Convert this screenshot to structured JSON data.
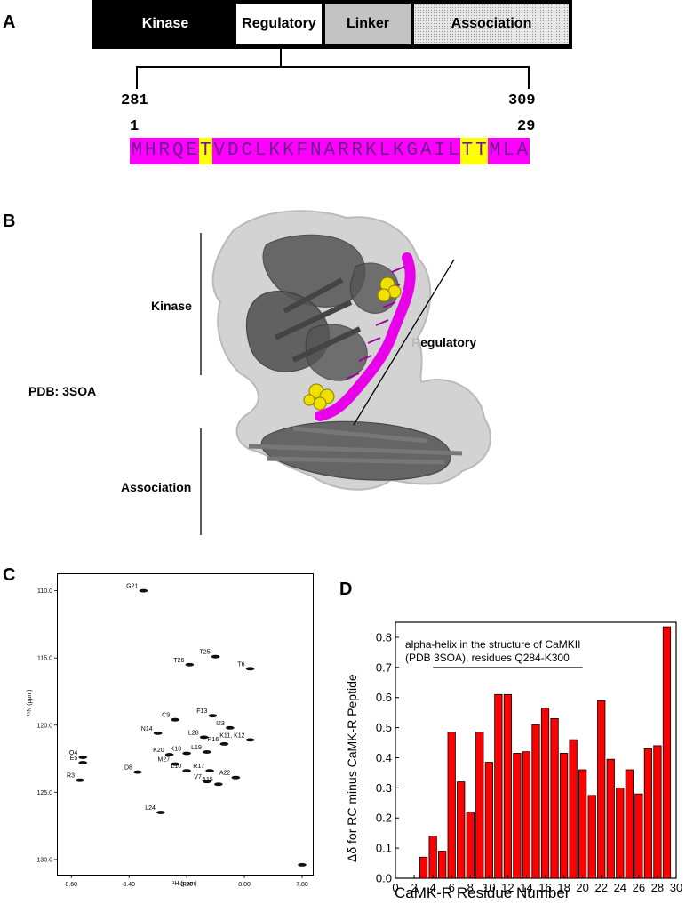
{
  "panels": {
    "a": {
      "letter": "A",
      "domains": [
        "Kinase",
        "Regulatory",
        "Linker",
        "Association"
      ],
      "residue_start": "281",
      "residue_end": "309",
      "peptide_start": "1",
      "peptide_end": "29",
      "sequence": "MHRQETVDCLKKFNARRKLKGAILTTMLA",
      "highlight_positions": [
        6,
        25,
        26
      ],
      "colors": {
        "sequence_bg": "#ff00ff",
        "highlight_bg": "#ffff00",
        "sequence_text": "#6a1a8a"
      }
    },
    "b": {
      "letter": "B",
      "pdb_label": "PDB: 3SOA",
      "kinase_label": "Kinase",
      "regulatory_label": "Regulatory",
      "association_label": "Association",
      "colors": {
        "surface": "#c9c9c9",
        "cartoon": "#555555",
        "helix": "#e800e8",
        "spheres": "#f0e000"
      }
    },
    "c": {
      "letter": "C",
      "x_label": "¹H (ppm)",
      "y_label": "¹⁵N (ppm)",
      "x_ticks": [
        "8.60",
        "8.40",
        "8.20",
        "8.00",
        "7.80"
      ],
      "y_ticks": [
        "110.0",
        "115.0",
        "120.0",
        "125.0",
        "130.0"
      ],
      "peaks": [
        {
          "label": "G21",
          "h": 8.35,
          "n": 110.0
        },
        {
          "label": "T25",
          "h": 8.1,
          "n": 114.9
        },
        {
          "label": "T26",
          "h": 8.19,
          "n": 115.5
        },
        {
          "label": "T6",
          "h": 7.98,
          "n": 115.8
        },
        {
          "label": "F13",
          "h": 8.11,
          "n": 119.3
        },
        {
          "label": "C9",
          "h": 8.24,
          "n": 119.6
        },
        {
          "label": "I23",
          "h": 8.05,
          "n": 120.2
        },
        {
          "label": "N14",
          "h": 8.3,
          "n": 120.6
        },
        {
          "label": "K11, K12",
          "h": 7.98,
          "n": 121.1
        },
        {
          "label": "L28",
          "h": 8.14,
          "n": 120.9
        },
        {
          "label": "R16",
          "h": 8.07,
          "n": 121.4
        },
        {
          "label": "K20",
          "h": 8.26,
          "n": 122.2
        },
        {
          "label": "K18",
          "h": 8.2,
          "n": 122.1
        },
        {
          "label": "L19",
          "h": 8.13,
          "n": 122.0
        },
        {
          "label": "M27",
          "h": 8.24,
          "n": 122.9
        },
        {
          "label": "R17",
          "h": 8.12,
          "n": 123.4
        },
        {
          "label": "L10",
          "h": 8.2,
          "n": 123.4
        },
        {
          "label": "D8",
          "h": 8.37,
          "n": 123.5
        },
        {
          "label": "A22",
          "h": 8.03,
          "n": 123.9
        },
        {
          "label": "V7",
          "h": 8.13,
          "n": 124.2
        },
        {
          "label": "A15",
          "h": 8.09,
          "n": 124.4
        },
        {
          "label": "Q4",
          "h": 8.56,
          "n": 122.4
        },
        {
          "label": "E5",
          "h": 8.56,
          "n": 122.8
        },
        {
          "label": "R3",
          "h": 8.57,
          "n": 124.1
        },
        {
          "label": "L24",
          "h": 8.29,
          "n": 126.5
        },
        {
          "label": "",
          "h": 7.8,
          "n": 130.4
        }
      ]
    },
    "d": {
      "letter": "D"
    }
  },
  "chart_data": {
    "type": "bar",
    "title": "",
    "xlabel": "CaMK-R Residue Number",
    "ylabel": "Δδ for RC minus CaMK-R Peptide",
    "xlim": [
      0,
      30
    ],
    "ylim": [
      0,
      0.85
    ],
    "x_ticks": [
      "0",
      "2",
      "4",
      "6",
      "8",
      "10",
      "12",
      "14",
      "16",
      "18",
      "20",
      "22",
      "24",
      "26",
      "28",
      "30"
    ],
    "y_ticks": [
      "0.0",
      "0.1",
      "0.2",
      "0.3",
      "0.4",
      "0.5",
      "0.6",
      "0.7",
      "0.8"
    ],
    "x": [
      3,
      4,
      5,
      6,
      7,
      8,
      9,
      10,
      11,
      12,
      13,
      14,
      15,
      16,
      17,
      18,
      19,
      20,
      21,
      22,
      23,
      24,
      25,
      26,
      27,
      28,
      29
    ],
    "values": [
      0.07,
      0.14,
      0.09,
      0.485,
      0.32,
      0.22,
      0.485,
      0.385,
      0.61,
      0.61,
      0.415,
      0.42,
      0.51,
      0.565,
      0.53,
      0.415,
      0.46,
      0.36,
      0.275,
      0.59,
      0.395,
      0.3,
      0.36,
      0.28,
      0.43,
      0.44,
      0.835
    ],
    "bar_color": "#ff0000",
    "annotation": {
      "line1": "alpha-helix in the structure of CaMKII",
      "line2": "(PDB 3SOA), residues Q284-K300",
      "range": [
        4,
        20
      ]
    },
    "grid": false
  }
}
